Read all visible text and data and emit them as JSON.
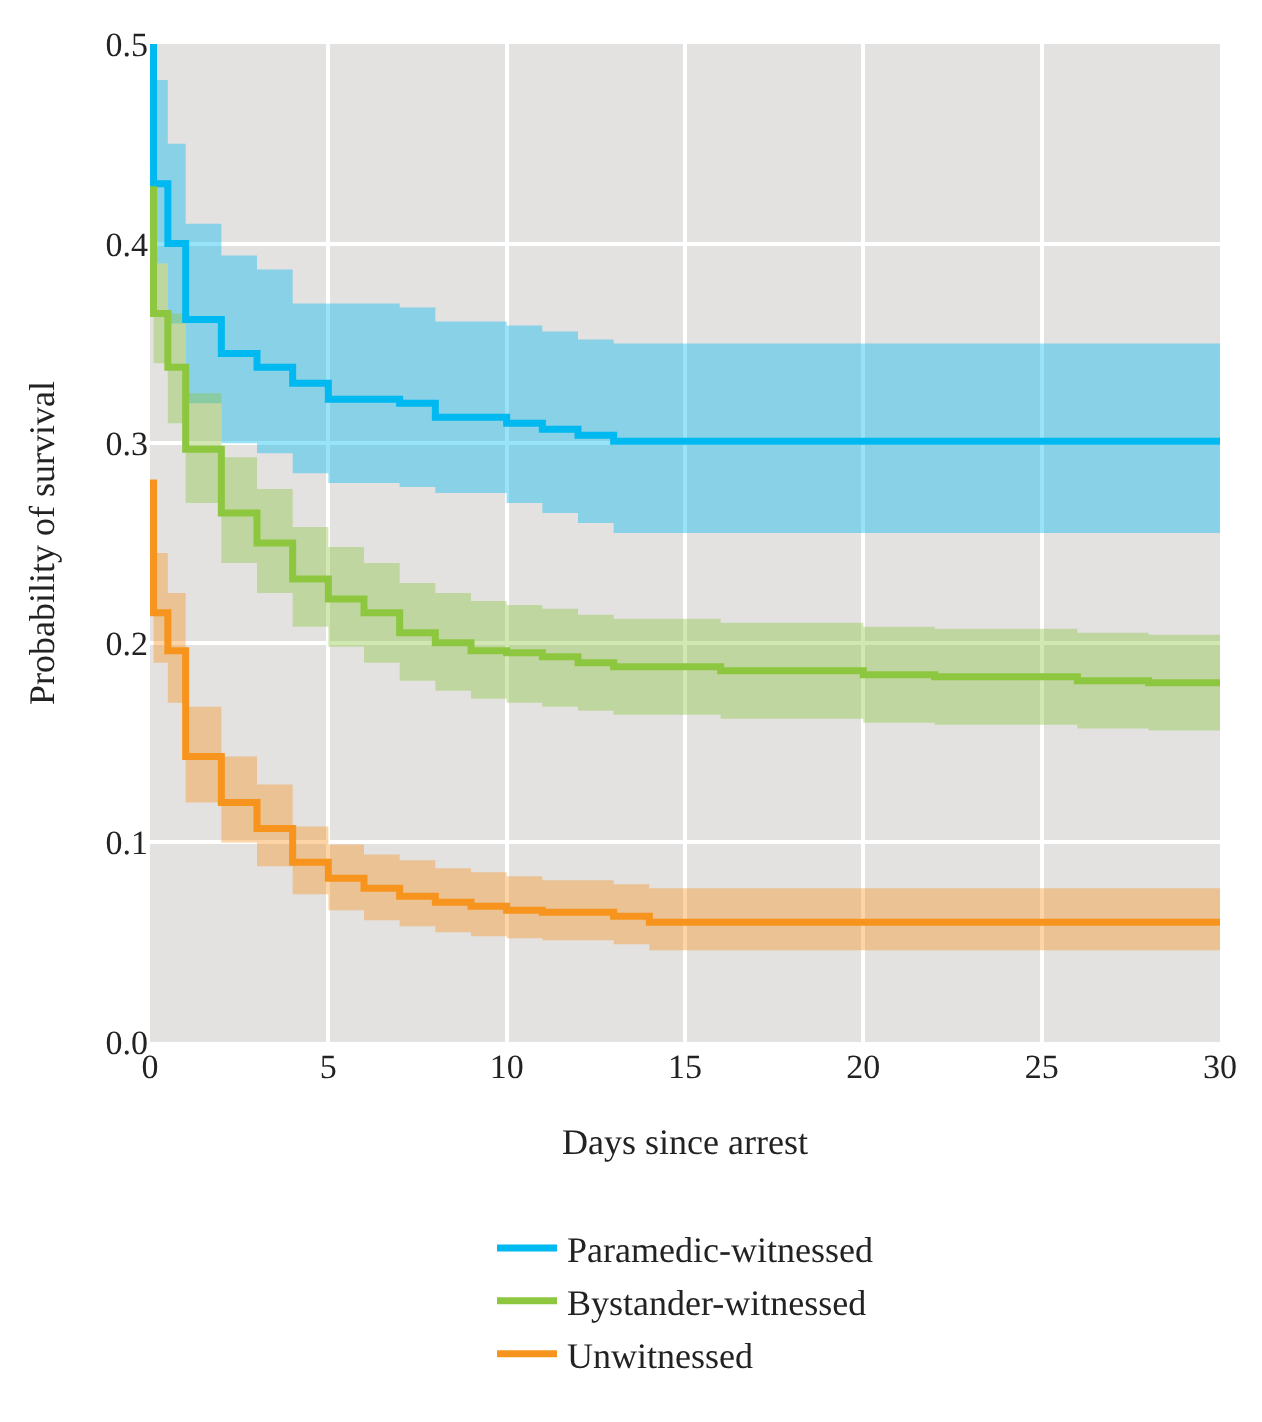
{
  "chart_data": {
    "type": "step",
    "xlabel": "Days since arrest",
    "ylabel": "Probability of survival",
    "xlim": [
      0,
      30
    ],
    "ylim": [
      0,
      0.5
    ],
    "xticks": [
      0,
      5,
      10,
      15,
      20,
      25,
      30
    ],
    "yticks": [
      {
        "value": 0,
        "label": "0.0"
      },
      0.1,
      0.2,
      0.3,
      0.4,
      0.5
    ],
    "grid": true,
    "legend": "bottom",
    "series": [
      {
        "name": "Paramedic-witnessed",
        "color": "#00b9f1",
        "x": [
          0,
          0.1,
          0.5,
          1,
          2,
          3,
          4,
          5,
          7,
          8,
          10,
          11,
          12,
          13,
          30
        ],
        "values": [
          0.5,
          0.43,
          0.4,
          0.362,
          0.345,
          0.338,
          0.33,
          0.322,
          0.32,
          0.313,
          0.31,
          0.307,
          0.304,
          0.301,
          0.301
        ],
        "upper": [
          0.5,
          0.482,
          0.45,
          0.41,
          0.394,
          0.387,
          0.37,
          0.37,
          0.368,
          0.361,
          0.359,
          0.356,
          0.352,
          0.35,
          0.35
        ],
        "lower": [
          0.44,
          0.39,
          0.36,
          0.32,
          0.3,
          0.295,
          0.285,
          0.28,
          0.278,
          0.275,
          0.27,
          0.265,
          0.26,
          0.255,
          0.255
        ]
      },
      {
        "name": "Bystander-witnessed",
        "color": "#8dc63f",
        "x": [
          0,
          0.1,
          0.5,
          1,
          2,
          3,
          4,
          5,
          6,
          7,
          8,
          9,
          10,
          11,
          12,
          13,
          16,
          20,
          22,
          26,
          28,
          30
        ],
        "values": [
          0.427,
          0.365,
          0.338,
          0.297,
          0.265,
          0.25,
          0.232,
          0.222,
          0.215,
          0.205,
          0.2,
          0.196,
          0.195,
          0.193,
          0.19,
          0.188,
          0.186,
          0.184,
          0.183,
          0.181,
          0.18,
          0.18
        ],
        "upper": [
          0.43,
          0.39,
          0.365,
          0.325,
          0.293,
          0.277,
          0.258,
          0.248,
          0.24,
          0.23,
          0.225,
          0.221,
          0.219,
          0.217,
          0.214,
          0.212,
          0.21,
          0.208,
          0.207,
          0.205,
          0.204,
          0.204
        ],
        "lower": [
          0.4,
          0.34,
          0.31,
          0.27,
          0.24,
          0.225,
          0.208,
          0.198,
          0.19,
          0.181,
          0.176,
          0.172,
          0.17,
          0.168,
          0.166,
          0.164,
          0.162,
          0.16,
          0.159,
          0.157,
          0.156,
          0.156
        ]
      },
      {
        "name": "Unwitnessed",
        "color": "#f7941d",
        "x": [
          0,
          0.1,
          0.5,
          1,
          2,
          3,
          4,
          5,
          6,
          7,
          8,
          9,
          10,
          11,
          13,
          14,
          30
        ],
        "values": [
          0.28,
          0.215,
          0.196,
          0.143,
          0.12,
          0.107,
          0.09,
          0.082,
          0.077,
          0.073,
          0.07,
          0.068,
          0.066,
          0.065,
          0.063,
          0.06,
          0.06
        ],
        "upper": [
          0.28,
          0.245,
          0.225,
          0.168,
          0.143,
          0.129,
          0.108,
          0.099,
          0.094,
          0.091,
          0.087,
          0.085,
          0.083,
          0.081,
          0.079,
          0.077,
          0.077
        ],
        "lower": [
          0.26,
          0.19,
          0.17,
          0.12,
          0.1,
          0.088,
          0.074,
          0.066,
          0.061,
          0.058,
          0.055,
          0.053,
          0.052,
          0.051,
          0.049,
          0.046,
          0.046
        ]
      }
    ]
  }
}
